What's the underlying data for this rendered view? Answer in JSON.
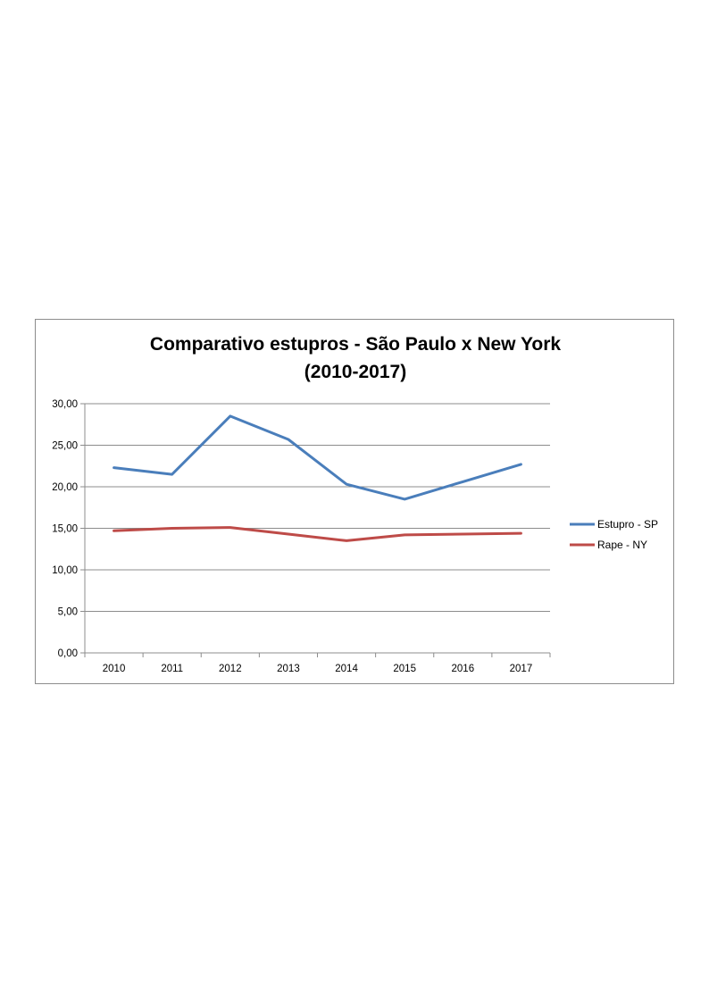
{
  "chart_data": {
    "type": "line",
    "title_line1": "Comparativo estupros - São Paulo x New York",
    "title_line2": "(2010-2017)",
    "categories": [
      "2010",
      "2011",
      "2012",
      "2013",
      "2014",
      "2015",
      "2016",
      "2017"
    ],
    "series": [
      {
        "name": "Estupro - SP",
        "color": "#4a7ebb",
        "values": [
          22.3,
          21.5,
          28.5,
          25.7,
          20.3,
          18.5,
          20.6,
          22.7
        ]
      },
      {
        "name": "Rape - NY",
        "color": "#be4b48",
        "values": [
          14.7,
          15.0,
          15.1,
          14.3,
          13.5,
          14.2,
          14.3,
          14.4
        ]
      }
    ],
    "ylim": [
      0,
      30
    ],
    "yticks": [
      "0,00",
      "5,00",
      "10,00",
      "15,00",
      "20,00",
      "25,00",
      "30,00"
    ],
    "grid": true,
    "legend_position": "right"
  }
}
